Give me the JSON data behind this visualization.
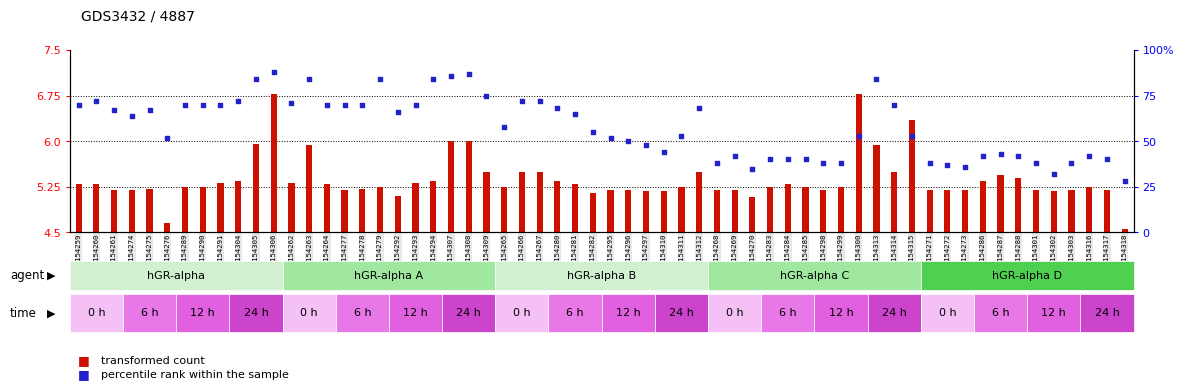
{
  "title": "GDS3432 / 4887",
  "samples": [
    "GSM154259",
    "GSM154260",
    "GSM154261",
    "GSM154274",
    "GSM154275",
    "GSM154276",
    "GSM154289",
    "GSM154290",
    "GSM154291",
    "GSM154304",
    "GSM154305",
    "GSM154306",
    "GSM154262",
    "GSM154263",
    "GSM154264",
    "GSM154277",
    "GSM154278",
    "GSM154279",
    "GSM154292",
    "GSM154293",
    "GSM154294",
    "GSM154307",
    "GSM154308",
    "GSM154309",
    "GSM154265",
    "GSM154266",
    "GSM154267",
    "GSM154280",
    "GSM154281",
    "GSM154282",
    "GSM154295",
    "GSM154296",
    "GSM154297",
    "GSM154310",
    "GSM154311",
    "GSM154312",
    "GSM154268",
    "GSM154269",
    "GSM154270",
    "GSM154283",
    "GSM154284",
    "GSM154285",
    "GSM154298",
    "GSM154299",
    "GSM154300",
    "GSM154313",
    "GSM154314",
    "GSM154315",
    "GSM154271",
    "GSM154272",
    "GSM154273",
    "GSM154286",
    "GSM154287",
    "GSM154288",
    "GSM154301",
    "GSM154302",
    "GSM154303",
    "GSM154316",
    "GSM154317",
    "GSM154318"
  ],
  "bar_values": [
    5.3,
    5.3,
    5.2,
    5.2,
    5.22,
    4.65,
    5.25,
    5.25,
    5.32,
    5.35,
    5.95,
    6.78,
    5.32,
    5.93,
    5.3,
    5.2,
    5.22,
    5.25,
    5.1,
    5.32,
    5.34,
    6.0,
    6.0,
    5.5,
    5.25,
    5.5,
    5.5,
    5.35,
    5.3,
    5.15,
    5.2,
    5.2,
    5.18,
    5.18,
    5.25,
    5.5,
    5.2,
    5.2,
    5.08,
    5.25,
    5.3,
    5.25,
    5.2,
    5.25,
    6.78,
    5.94,
    5.5,
    6.35,
    5.2,
    5.2,
    5.2,
    5.35,
    5.45,
    5.4,
    5.2,
    5.18,
    5.2,
    5.25,
    5.2,
    4.55
  ],
  "dot_values": [
    70,
    72,
    67,
    64,
    67,
    52,
    70,
    70,
    70,
    72,
    84,
    88,
    71,
    84,
    70,
    70,
    70,
    84,
    66,
    70,
    84,
    86,
    87,
    75,
    58,
    72,
    72,
    68,
    65,
    55,
    52,
    50,
    48,
    44,
    53,
    68,
    38,
    42,
    35,
    40,
    40,
    40,
    38,
    38,
    53,
    84,
    70,
    53,
    38,
    37,
    36,
    42,
    43,
    42,
    38,
    32,
    38,
    42,
    40,
    28
  ],
  "agents": [
    {
      "label": "hGR-alpha",
      "start": 0,
      "end": 12,
      "color": "#d0f0d0"
    },
    {
      "label": "hGR-alpha A",
      "start": 12,
      "end": 24,
      "color": "#a0e8a0"
    },
    {
      "label": "hGR-alpha B",
      "start": 24,
      "end": 36,
      "color": "#d0f0d0"
    },
    {
      "label": "hGR-alpha C",
      "start": 36,
      "end": 48,
      "color": "#a0e8a0"
    },
    {
      "label": "hGR-alpha D",
      "start": 48,
      "end": 60,
      "color": "#50d050"
    }
  ],
  "times": [
    {
      "label": "0 h",
      "start": 0,
      "end": 3,
      "color": "#f5c0f5"
    },
    {
      "label": "6 h",
      "start": 3,
      "end": 6,
      "color": "#e878e8"
    },
    {
      "label": "12 h",
      "start": 6,
      "end": 9,
      "color": "#e060e0"
    },
    {
      "label": "24 h",
      "start": 9,
      "end": 12,
      "color": "#cc44cc"
    },
    {
      "label": "0 h",
      "start": 12,
      "end": 15,
      "color": "#f5c0f5"
    },
    {
      "label": "6 h",
      "start": 15,
      "end": 18,
      "color": "#e878e8"
    },
    {
      "label": "12 h",
      "start": 18,
      "end": 21,
      "color": "#e060e0"
    },
    {
      "label": "24 h",
      "start": 21,
      "end": 24,
      "color": "#cc44cc"
    },
    {
      "label": "0 h",
      "start": 24,
      "end": 27,
      "color": "#f5c0f5"
    },
    {
      "label": "6 h",
      "start": 27,
      "end": 30,
      "color": "#e878e8"
    },
    {
      "label": "12 h",
      "start": 30,
      "end": 33,
      "color": "#e060e0"
    },
    {
      "label": "24 h",
      "start": 33,
      "end": 36,
      "color": "#cc44cc"
    },
    {
      "label": "0 h",
      "start": 36,
      "end": 39,
      "color": "#f5c0f5"
    },
    {
      "label": "6 h",
      "start": 39,
      "end": 42,
      "color": "#e878e8"
    },
    {
      "label": "12 h",
      "start": 42,
      "end": 45,
      "color": "#e060e0"
    },
    {
      "label": "24 h",
      "start": 45,
      "end": 48,
      "color": "#cc44cc"
    },
    {
      "label": "0 h",
      "start": 48,
      "end": 51,
      "color": "#f5c0f5"
    },
    {
      "label": "6 h",
      "start": 51,
      "end": 54,
      "color": "#e878e8"
    },
    {
      "label": "12 h",
      "start": 54,
      "end": 57,
      "color": "#e060e0"
    },
    {
      "label": "24 h",
      "start": 57,
      "end": 60,
      "color": "#cc44cc"
    }
  ],
  "ylim_left": [
    4.5,
    7.5
  ],
  "ylim_right": [
    0,
    100
  ],
  "yticks_left": [
    4.5,
    5.25,
    6.0,
    6.75,
    7.5
  ],
  "yticks_right": [
    0,
    25,
    50,
    75,
    100
  ],
  "bar_color": "#cc1100",
  "dot_color": "#2222cc",
  "bar_baseline": 4.5
}
